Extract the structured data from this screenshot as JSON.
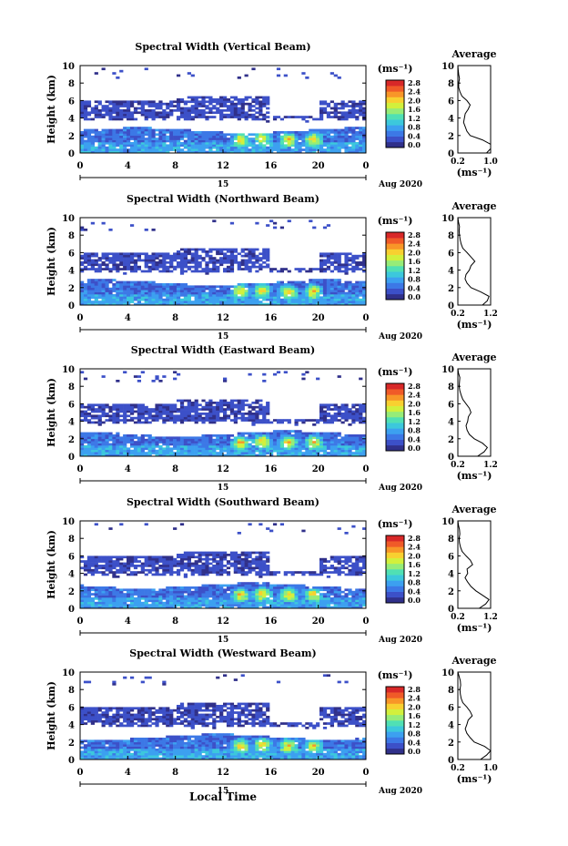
{
  "figure": {
    "xlabel_bottom": "Local Time",
    "date_label": "Aug 2020",
    "day_label": "15",
    "avg_title": "Average",
    "cb_unit": "(ms⁻¹)",
    "ylabel": "Height (km)",
    "avg_unit": "(ms⁻¹)"
  },
  "colorbar": {
    "ticks": [
      "2.8",
      "2.4",
      "2.0",
      "1.6",
      "1.2",
      "0.8",
      "0.4",
      "0.0"
    ],
    "colors": [
      "#30308a",
      "#3c50c8",
      "#3c78e6",
      "#3ca0f0",
      "#3cc8dc",
      "#50e0b4",
      "#96ec78",
      "#d2f03c",
      "#f8d030",
      "#f89628",
      "#f05a28",
      "#d82828"
    ]
  },
  "chart_data": [
    {
      "type": "heatmap",
      "title": "Spectral Width (Vertical Beam)",
      "x_ticks": [
        "0",
        "4",
        "8",
        "12",
        "16",
        "20",
        "0"
      ],
      "y_ticks": [
        "0",
        "2",
        "4",
        "6",
        "8",
        "10"
      ],
      "xlim": [
        0,
        24
      ],
      "ylim": [
        0,
        10
      ],
      "avg_x_ticks": [
        "0.2",
        "1.0"
      ],
      "avg_profile": {
        "height": [
          0,
          0.5,
          1,
          1.5,
          2,
          2.5,
          3,
          3.5,
          4,
          4.5,
          5,
          5.5,
          6,
          6.5,
          7,
          7.5,
          8,
          8.5,
          9,
          9.5,
          10
        ],
        "value": [
          0.9,
          1.0,
          1.05,
          0.8,
          0.5,
          0.42,
          0.38,
          0.34,
          0.36,
          0.38,
          0.45,
          0.5,
          0.42,
          0.3,
          0.25,
          0.22,
          0.22,
          0.24,
          0.22,
          0.21,
          0.2
        ]
      }
    },
    {
      "type": "heatmap",
      "title": "Spectral Width (Northward Beam)",
      "x_ticks": [
        "0",
        "4",
        "8",
        "12",
        "16",
        "20",
        "0"
      ],
      "y_ticks": [
        "0",
        "2",
        "4",
        "6",
        "8",
        "10"
      ],
      "xlim": [
        0,
        24
      ],
      "ylim": [
        0,
        10
      ],
      "avg_x_ticks": [
        "0.2",
        "1.2"
      ],
      "avg_profile": {
        "height": [
          0,
          0.5,
          1,
          1.5,
          2,
          2.5,
          3,
          3.5,
          4,
          4.5,
          5,
          5.5,
          6,
          6.5,
          7,
          7.5,
          8,
          8.5,
          9,
          9.5,
          10
        ],
        "value": [
          0.95,
          1.1,
          1.15,
          0.9,
          0.6,
          0.48,
          0.42,
          0.45,
          0.55,
          0.6,
          0.72,
          0.6,
          0.48,
          0.35,
          0.3,
          0.27,
          0.25,
          0.24,
          0.25,
          0.22,
          0.2
        ]
      }
    },
    {
      "type": "heatmap",
      "title": "Spectral Width (Eastward Beam)",
      "x_ticks": [
        "0",
        "4",
        "8",
        "12",
        "16",
        "20",
        "0"
      ],
      "y_ticks": [
        "0",
        "2",
        "4",
        "6",
        "8",
        "10"
      ],
      "xlim": [
        0,
        24
      ],
      "ylim": [
        0,
        10
      ],
      "avg_x_ticks": [
        "0.2",
        "1.2"
      ],
      "avg_profile": {
        "height": [
          0,
          0.5,
          1,
          1.5,
          2,
          2.5,
          3,
          3.5,
          4,
          4.5,
          5,
          5.5,
          6,
          6.5,
          7,
          7.5,
          8,
          8.5,
          9,
          9.5,
          10
        ],
        "value": [
          0.8,
          1.0,
          1.1,
          0.95,
          0.7,
          0.55,
          0.48,
          0.45,
          0.5,
          0.52,
          0.6,
          0.55,
          0.45,
          0.35,
          0.3,
          0.26,
          0.24,
          0.25,
          0.26,
          0.22,
          0.2
        ]
      }
    },
    {
      "type": "heatmap",
      "title": "Spectral Width (Southward Beam)",
      "x_ticks": [
        "0",
        "4",
        "8",
        "12",
        "16",
        "20",
        "0"
      ],
      "y_ticks": [
        "0",
        "2",
        "4",
        "6",
        "8",
        "10"
      ],
      "xlim": [
        0,
        24
      ],
      "ylim": [
        0,
        10
      ],
      "avg_x_ticks": [
        "0.2",
        "1.2"
      ],
      "avg_profile": {
        "height": [
          0,
          0.5,
          1,
          1.5,
          2,
          2.5,
          3,
          3.5,
          4,
          4.5,
          5,
          5.5,
          6,
          6.5,
          7,
          7.5,
          8,
          8.5,
          9,
          9.5,
          10
        ],
        "value": [
          0.85,
          1.05,
          1.15,
          0.95,
          0.75,
          0.6,
          0.5,
          0.42,
          0.5,
          0.48,
          0.65,
          0.58,
          0.45,
          0.33,
          0.28,
          0.25,
          0.24,
          0.26,
          0.25,
          0.22,
          0.2
        ]
      }
    },
    {
      "type": "heatmap",
      "title": "Spectral Width (Westward Beam)",
      "x_ticks": [
        "0",
        "4",
        "8",
        "12",
        "16",
        "20",
        "0"
      ],
      "y_ticks": [
        "0",
        "2",
        "4",
        "6",
        "8",
        "10"
      ],
      "xlim": [
        0,
        24
      ],
      "ylim": [
        0,
        10
      ],
      "avg_x_ticks": [
        "0.2",
        "1.0"
      ],
      "avg_profile": {
        "height": [
          0,
          0.5,
          1,
          1.5,
          2,
          2.5,
          3,
          3.5,
          4,
          4.5,
          5,
          5.5,
          6,
          6.5,
          7,
          7.5,
          8,
          8.5,
          9,
          9.5,
          10
        ],
        "value": [
          0.75,
          0.9,
          1.0,
          0.85,
          0.6,
          0.5,
          0.42,
          0.38,
          0.42,
          0.45,
          0.55,
          0.5,
          0.42,
          0.32,
          0.28,
          0.26,
          0.25,
          0.27,
          0.26,
          0.23,
          0.2
        ]
      }
    }
  ]
}
